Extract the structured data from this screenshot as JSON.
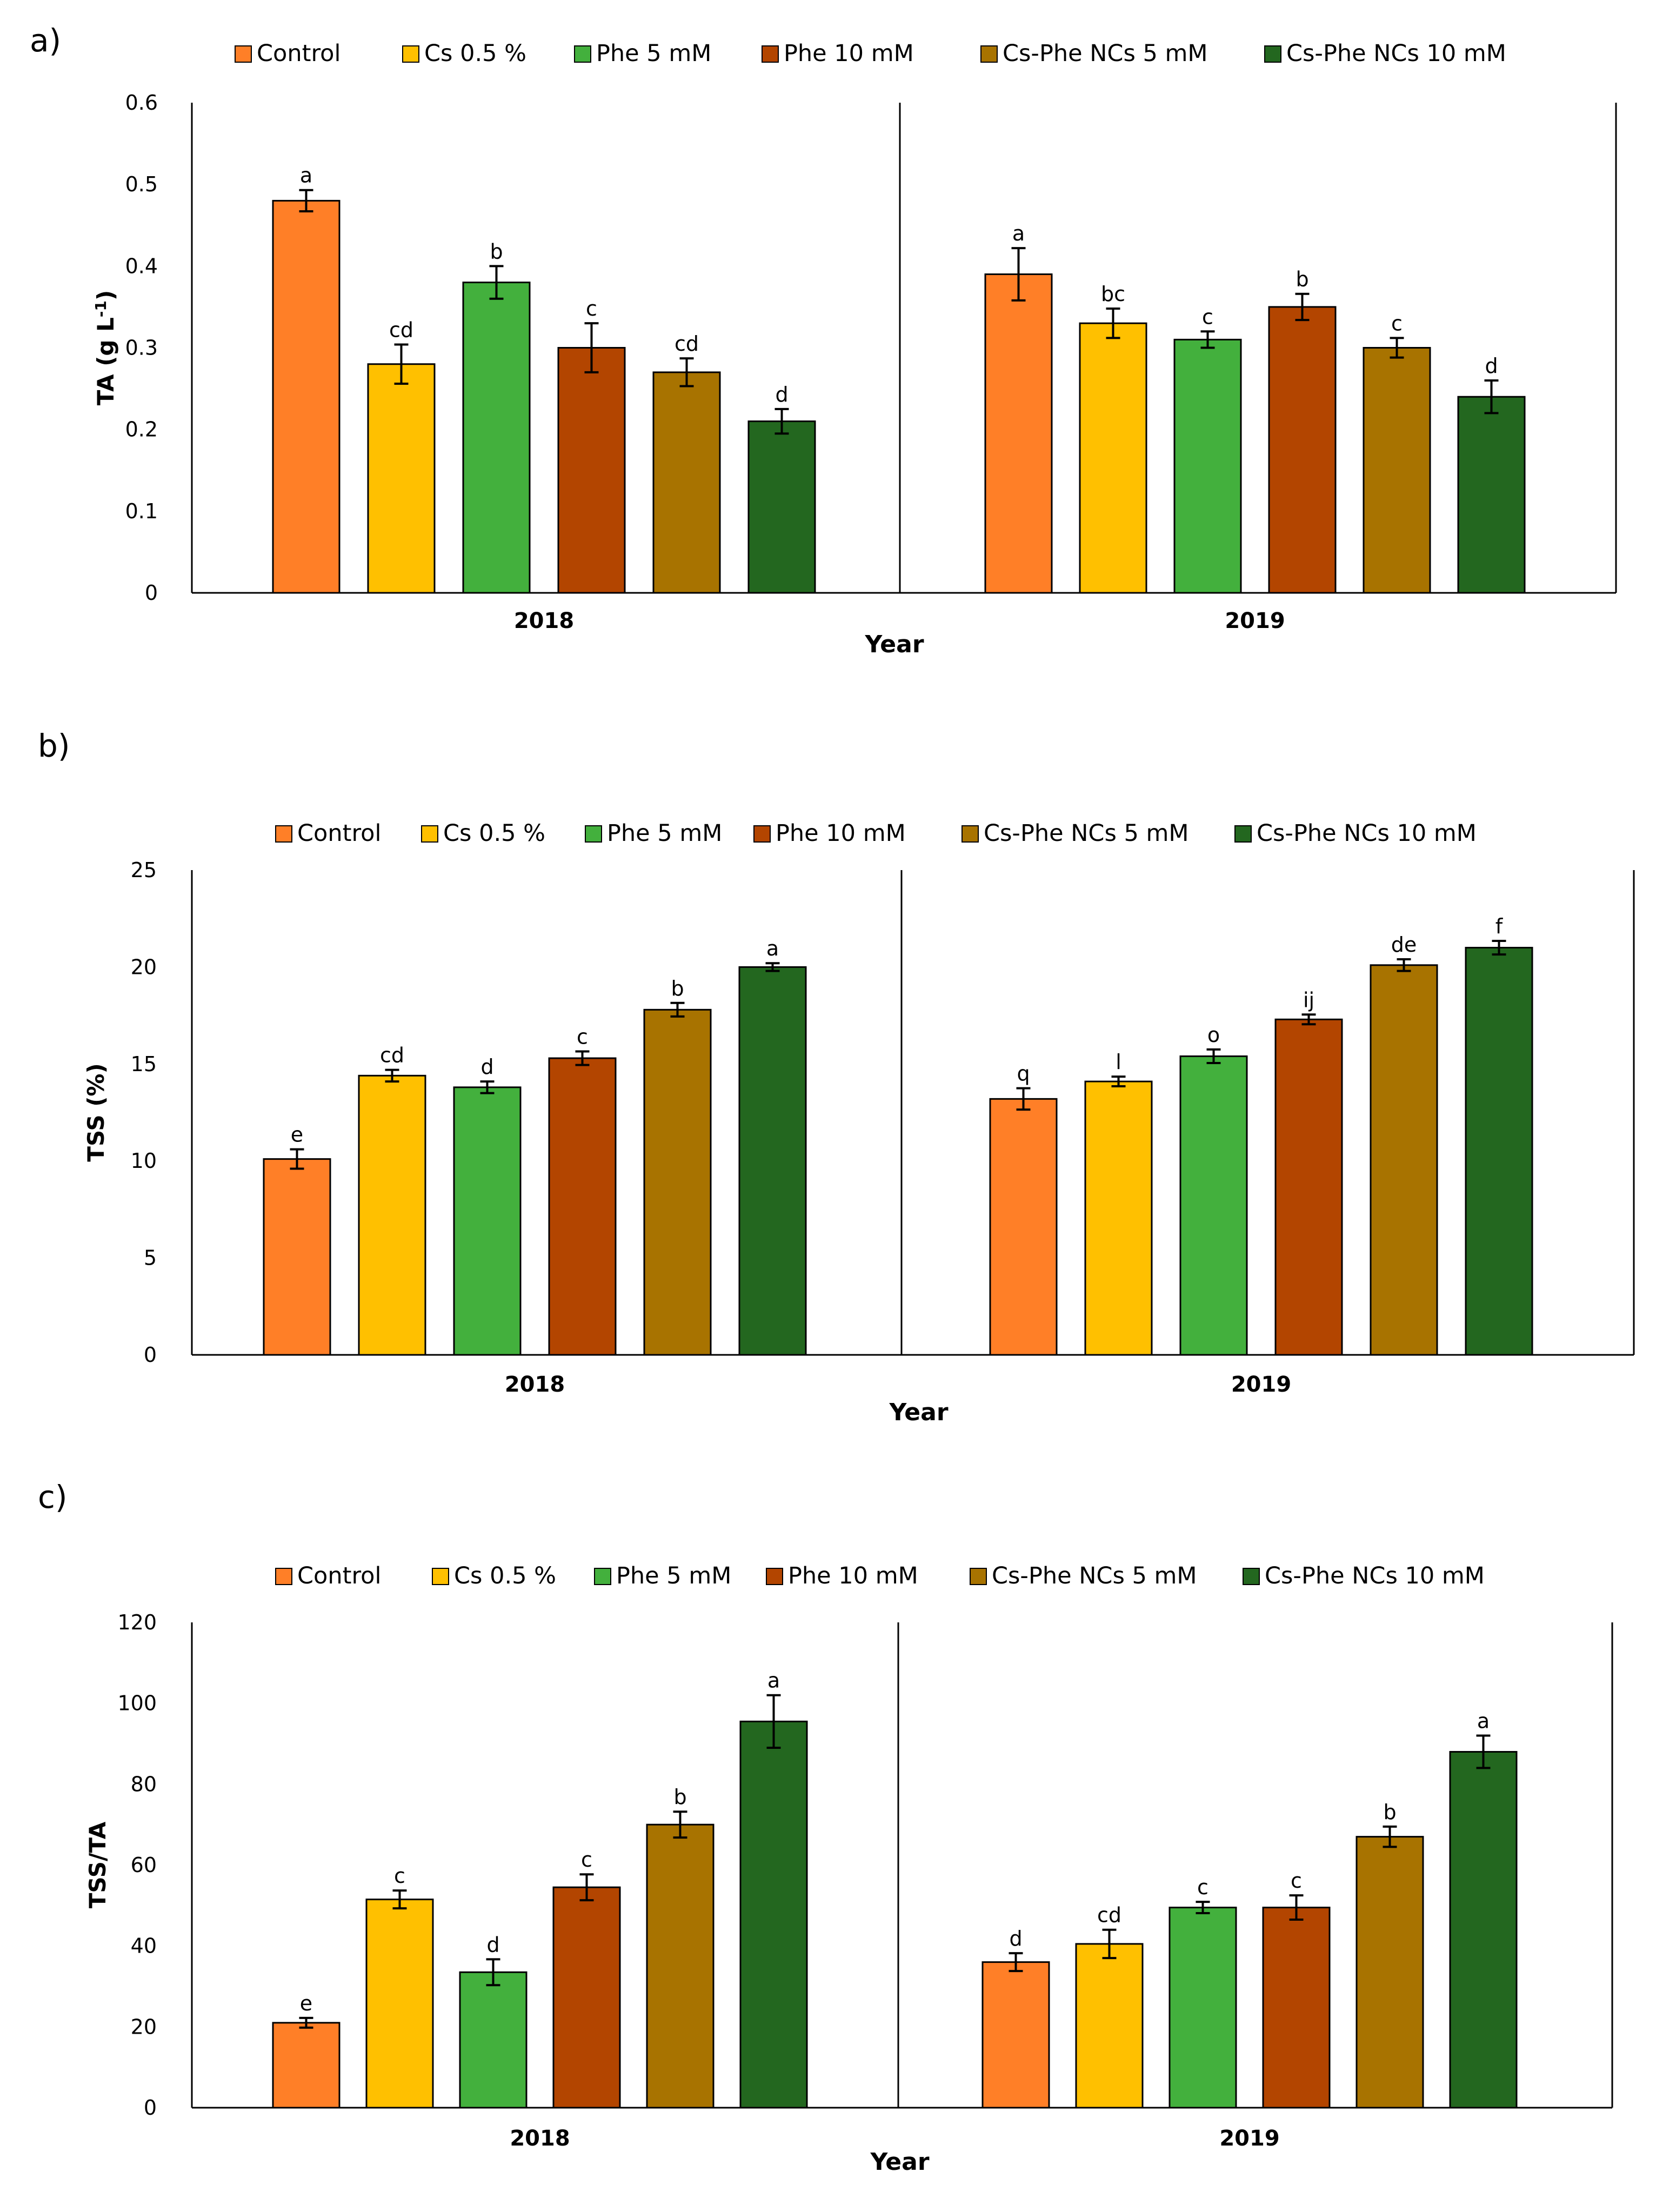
{
  "chart_data": [
    {
      "type": "bar",
      "panel_label": "a)",
      "title": "",
      "xlabel": "Year",
      "ylabel": "TA (g L",
      "ylabel_sup": "-1",
      "ylabel_end": ")",
      "ylim": [
        0,
        0.6
      ],
      "yticks": [
        "0",
        "0.1",
        "0.2",
        "0.3",
        "0.4",
        "0.5",
        "0.6"
      ],
      "categories": [
        "2018",
        "2019"
      ],
      "series": [
        {
          "name": "Control",
          "color": "#FF7F27",
          "values": [
            0.48,
            0.39
          ],
          "errors": [
            0.013,
            0.032
          ],
          "letters": [
            "a",
            "a"
          ]
        },
        {
          "name": "Cs 0.5 %",
          "color": "#FFC000",
          "values": [
            0.28,
            0.33
          ],
          "errors": [
            0.024,
            0.018
          ],
          "letters": [
            "cd",
            "bc"
          ]
        },
        {
          "name": "Phe 5 mM",
          "color": "#43B03D",
          "values": [
            0.38,
            0.31
          ],
          "errors": [
            0.02,
            0.01
          ],
          "letters": [
            "b",
            "c"
          ]
        },
        {
          "name": "Phe 10 mM",
          "color": "#B34500",
          "values": [
            0.3,
            0.35
          ],
          "errors": [
            0.03,
            0.016
          ],
          "letters": [
            "c",
            "b"
          ]
        },
        {
          "name": "Cs-Phe NCs 5 mM",
          "color": "#A87300",
          "values": [
            0.27,
            0.3
          ],
          "errors": [
            0.017,
            0.012
          ],
          "letters": [
            "cd",
            "c"
          ]
        },
        {
          "name": "Cs-Phe NCs 10 mM",
          "color": "#23671F",
          "values": [
            0.21,
            0.24
          ],
          "errors": [
            0.015,
            0.02
          ],
          "letters": [
            "d",
            "d"
          ]
        }
      ]
    },
    {
      "type": "bar",
      "panel_label": "b)",
      "title": "",
      "xlabel": "Year",
      "ylabel": "TSS (%)",
      "ylabel_sup": "",
      "ylabel_end": "",
      "ylim": [
        0,
        25
      ],
      "yticks": [
        "0",
        "5",
        "10",
        "15",
        "20",
        "25"
      ],
      "categories": [
        "2018",
        "2019"
      ],
      "series": [
        {
          "name": "Control",
          "color": "#FF7F27",
          "values": [
            10.1,
            13.2
          ],
          "errors": [
            0.5,
            0.55
          ],
          "letters": [
            "e",
            "q"
          ]
        },
        {
          "name": "Cs 0.5 %",
          "color": "#FFC000",
          "values": [
            14.4,
            14.1
          ],
          "errors": [
            0.3,
            0.25
          ],
          "letters": [
            "cd",
            "l"
          ]
        },
        {
          "name": "Phe 5 mM",
          "color": "#43B03D",
          "values": [
            13.8,
            15.4
          ],
          "errors": [
            0.3,
            0.35
          ],
          "letters": [
            "d",
            "o"
          ]
        },
        {
          "name": "Phe 10 mM",
          "color": "#B34500",
          "values": [
            15.3,
            17.3
          ],
          "errors": [
            0.35,
            0.25
          ],
          "letters": [
            "c",
            "ij"
          ]
        },
        {
          "name": "Cs-Phe NCs 5 mM",
          "color": "#A87300",
          "values": [
            17.8,
            20.1
          ],
          "errors": [
            0.35,
            0.3
          ],
          "letters": [
            "b",
            "de"
          ]
        },
        {
          "name": "Cs-Phe NCs 10 mM",
          "color": "#23671F",
          "values": [
            20.0,
            21.0
          ],
          "errors": [
            0.2,
            0.35
          ],
          "letters": [
            "a",
            "f"
          ]
        }
      ]
    },
    {
      "type": "bar",
      "panel_label": "c)",
      "title": "",
      "xlabel": "Year",
      "ylabel": "TSS/TA",
      "ylabel_sup": "",
      "ylabel_end": "",
      "ylim": [
        0,
        120
      ],
      "yticks": [
        "0",
        "20",
        "40",
        "60",
        "80",
        "100",
        "120"
      ],
      "categories": [
        "2018",
        "2019"
      ],
      "series": [
        {
          "name": "Control",
          "color": "#FF7F27",
          "values": [
            21,
            36
          ],
          "errors": [
            1.2,
            2.2
          ],
          "letters": [
            "e",
            "d"
          ]
        },
        {
          "name": "Cs 0.5 %",
          "color": "#FFC000",
          "values": [
            51.5,
            40.5
          ],
          "errors": [
            2.2,
            3.5
          ],
          "letters": [
            "c",
            "cd"
          ]
        },
        {
          "name": "Phe 5 mM",
          "color": "#43B03D",
          "values": [
            33.5,
            49.5
          ],
          "errors": [
            3.2,
            1.4
          ],
          "letters": [
            "d",
            "c"
          ]
        },
        {
          "name": "Phe 10 mM",
          "color": "#B34500",
          "values": [
            54.5,
            49.5
          ],
          "errors": [
            3.2,
            3.0
          ],
          "letters": [
            "c",
            "c"
          ]
        },
        {
          "name": "Cs-Phe NCs 5 mM",
          "color": "#A87300",
          "values": [
            70,
            67
          ],
          "errors": [
            3.2,
            2.5
          ],
          "letters": [
            "b",
            "b"
          ]
        },
        {
          "name": "Cs-Phe NCs 10 mM",
          "color": "#23671F",
          "values": [
            95.5,
            88
          ],
          "errors": [
            6.5,
            4.0
          ],
          "letters": [
            "a",
            "a"
          ]
        }
      ]
    }
  ]
}
